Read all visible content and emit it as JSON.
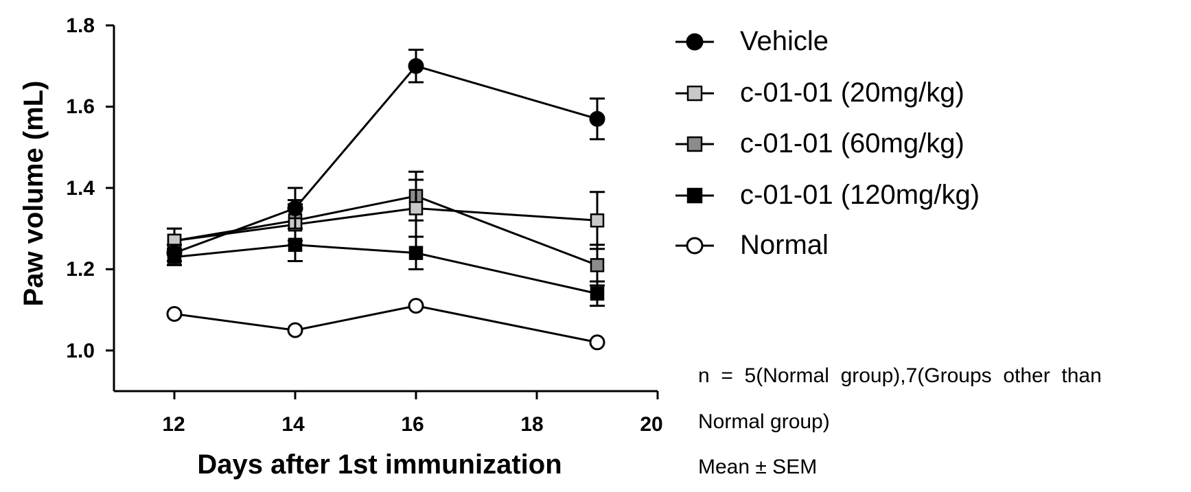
{
  "chart_data": {
    "type": "line",
    "xlabel": "Days after 1st immunization",
    "ylabel": "Paw volume (mL)",
    "xlim": [
      11,
      20
    ],
    "ylim": [
      0.9,
      1.8
    ],
    "x_ticks": [
      "12",
      "14",
      "16",
      "18",
      "20"
    ],
    "y_ticks": [
      "1.0",
      "1.2",
      "1.4",
      "1.6",
      "1.8"
    ],
    "grid": false,
    "legend_position": "right",
    "series": [
      {
        "name": "Vehicle",
        "marker": "filled-circle",
        "marker_color": "#000000",
        "x": [
          12,
          14,
          16,
          19
        ],
        "y": [
          1.24,
          1.35,
          1.7,
          1.57
        ],
        "error": [
          0.02,
          0.05,
          0.04,
          0.05
        ]
      },
      {
        "name": "c-01-01 (20mg/kg)",
        "marker": "square",
        "marker_color": "#c8c8c8",
        "x": [
          12,
          14,
          16,
          19
        ],
        "y": [
          1.27,
          1.31,
          1.35,
          1.32
        ],
        "error": [
          0.03,
          0.05,
          0.07,
          0.07
        ]
      },
      {
        "name": "c-01-01 (60mg/kg)",
        "marker": "square",
        "marker_color": "#8c8c8c",
        "x": [
          12,
          14,
          16,
          19
        ],
        "y": [
          1.27,
          1.32,
          1.38,
          1.21
        ],
        "error": [
          0.03,
          0.05,
          0.06,
          0.05
        ]
      },
      {
        "name": "c-01-01 (120mg/kg)",
        "marker": "filled-square",
        "marker_color": "#000000",
        "x": [
          12,
          14,
          16,
          19
        ],
        "y": [
          1.23,
          1.26,
          1.24,
          1.14
        ],
        "error": [
          0.02,
          0.04,
          0.04,
          0.03
        ]
      },
      {
        "name": "Normal",
        "marker": "open-circle",
        "marker_color": "#ffffff",
        "x": [
          12,
          14,
          16,
          19
        ],
        "y": [
          1.09,
          1.05,
          1.11,
          1.02
        ],
        "error": [
          0,
          0,
          0,
          0
        ]
      }
    ]
  },
  "notes": {
    "line1": "n  =  5(Normal  group),7(Groups  other  than",
    "line2": "Normal group)",
    "line3": "Mean ± SEM"
  }
}
